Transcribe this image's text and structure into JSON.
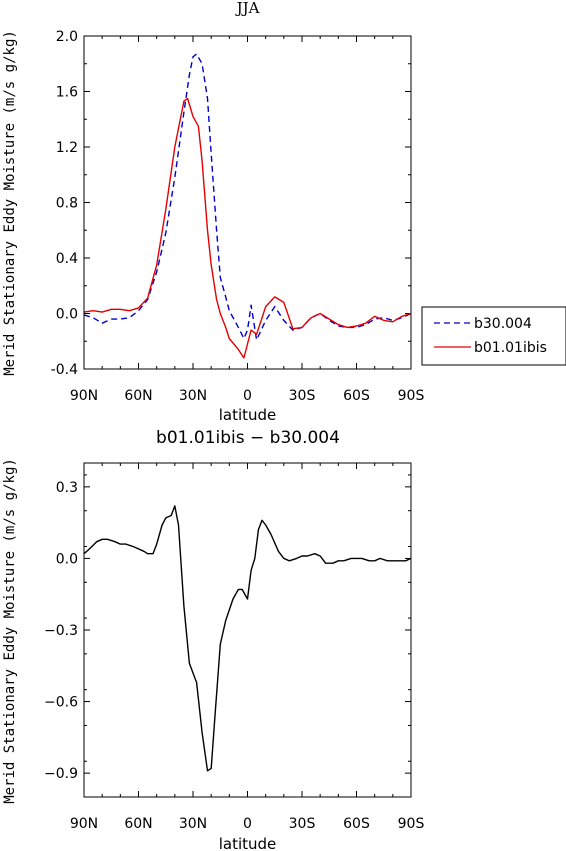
{
  "chart_data": [
    {
      "type": "line",
      "title": "JJA",
      "xlabel": "latitude",
      "ylabel": "Merid Stationary Eddy Moisture (m/s g/kg)",
      "xlim": [
        90,
        -90
      ],
      "ylim": [
        -0.4,
        2.0
      ],
      "x_ticks": [
        {
          "value": 90,
          "label": "90N"
        },
        {
          "value": 60,
          "label": "60N"
        },
        {
          "value": 30,
          "label": "30N"
        },
        {
          "value": 0,
          "label": "0"
        },
        {
          "value": -30,
          "label": "30S"
        },
        {
          "value": -60,
          "label": "60S"
        },
        {
          "value": -90,
          "label": "90S"
        }
      ],
      "y_ticks": [
        {
          "value": 2.0,
          "label": "2.0"
        },
        {
          "value": 1.6,
          "label": "1.6"
        },
        {
          "value": 1.2,
          "label": "1.2"
        },
        {
          "value": 0.8,
          "label": "0.8"
        },
        {
          "value": 0.4,
          "label": "0.4"
        },
        {
          "value": 0.0,
          "label": "0.0"
        },
        {
          "value": -0.4,
          "label": "-0.4"
        }
      ],
      "legend_position": "right",
      "series": [
        {
          "name": "b30.004",
          "color": "#0000cc",
          "dash": "dashed",
          "x": [
            90,
            85,
            80,
            75,
            70,
            65,
            60,
            55,
            50,
            45,
            40,
            35,
            32,
            30,
            28,
            25,
            22,
            20,
            17,
            15,
            12,
            10,
            5,
            2,
            0,
            -2,
            -5,
            -10,
            -15,
            -20,
            -25,
            -30,
            -35,
            -40,
            -45,
            -50,
            -55,
            -60,
            -65,
            -70,
            -75,
            -80,
            -85,
            -90
          ],
          "y": [
            -0.01,
            -0.03,
            -0.07,
            -0.04,
            -0.04,
            -0.03,
            0.02,
            0.1,
            0.3,
            0.58,
            0.98,
            1.45,
            1.72,
            1.85,
            1.87,
            1.8,
            1.55,
            1.15,
            0.6,
            0.26,
            0.12,
            0.02,
            -0.1,
            -0.18,
            -0.12,
            0.06,
            -0.19,
            -0.05,
            0.05,
            -0.05,
            -0.12,
            -0.1,
            -0.03,
            0.0,
            -0.05,
            -0.09,
            -0.1,
            -0.1,
            -0.08,
            -0.04,
            -0.03,
            -0.05,
            -0.03,
            0.0
          ]
        },
        {
          "name": "b01.01ibis",
          "color": "#e60000",
          "dash": "solid",
          "x": [
            90,
            85,
            80,
            75,
            70,
            65,
            60,
            55,
            50,
            45,
            40,
            35,
            33,
            30,
            27,
            25,
            22,
            20,
            17,
            15,
            12,
            10,
            5,
            2,
            0,
            -2,
            -5,
            -10,
            -15,
            -20,
            -25,
            -30,
            -35,
            -40,
            -45,
            -50,
            -55,
            -60,
            -65,
            -70,
            -75,
            -80,
            -85,
            -90
          ],
          "y": [
            0.01,
            0.02,
            0.01,
            0.03,
            0.03,
            0.02,
            0.04,
            0.11,
            0.35,
            0.75,
            1.2,
            1.53,
            1.55,
            1.42,
            1.35,
            1.1,
            0.6,
            0.35,
            0.1,
            0.0,
            -0.1,
            -0.18,
            -0.26,
            -0.32,
            -0.22,
            -0.12,
            -0.15,
            0.05,
            0.12,
            0.08,
            -0.11,
            -0.1,
            -0.03,
            0.0,
            -0.04,
            -0.08,
            -0.1,
            -0.09,
            -0.07,
            -0.02,
            -0.05,
            -0.06,
            -0.02,
            0.0
          ]
        }
      ]
    },
    {
      "type": "line",
      "title": "b01.01ibis − b30.004",
      "xlabel": "latitude",
      "ylabel": "Merid Stationary Eddy Moisture (m/s g/kg)",
      "xlim": [
        90,
        -90
      ],
      "ylim": [
        -1.0,
        0.4
      ],
      "x_ticks": [
        {
          "value": 90,
          "label": "90N"
        },
        {
          "value": 60,
          "label": "60N"
        },
        {
          "value": 30,
          "label": "30N"
        },
        {
          "value": 0,
          "label": "0"
        },
        {
          "value": -30,
          "label": "30S"
        },
        {
          "value": -60,
          "label": "60S"
        },
        {
          "value": -90,
          "label": "90S"
        }
      ],
      "y_ticks": [
        {
          "value": 0.3,
          "label": "0.3"
        },
        {
          "value": 0.0,
          "label": "0.0"
        },
        {
          "value": -0.3,
          "label": "−0.3"
        },
        {
          "value": -0.6,
          "label": "−0.6"
        },
        {
          "value": -0.9,
          "label": "−0.9"
        }
      ],
      "series": [
        {
          "color": "#000000",
          "dash": "solid",
          "x": [
            90,
            87,
            83,
            80,
            77,
            73,
            70,
            67,
            63,
            60,
            57,
            55,
            52,
            50,
            47,
            45,
            42,
            40,
            38,
            35,
            32,
            28,
            25,
            22,
            20,
            18,
            15,
            12,
            8,
            5,
            3,
            0,
            -2,
            -4,
            -6,
            -8,
            -10,
            -13,
            -17,
            -20,
            -23,
            -27,
            -30,
            -33,
            -37,
            -40,
            -43,
            -47,
            -50,
            -53,
            -57,
            -60,
            -63,
            -67,
            -70,
            -73,
            -77,
            -80,
            -83,
            -87,
            -90
          ],
          "y": [
            0.02,
            0.04,
            0.07,
            0.08,
            0.08,
            0.07,
            0.06,
            0.06,
            0.05,
            0.04,
            0.03,
            0.02,
            0.02,
            0.06,
            0.14,
            0.17,
            0.18,
            0.22,
            0.14,
            -0.2,
            -0.44,
            -0.52,
            -0.73,
            -0.89,
            -0.88,
            -0.67,
            -0.36,
            -0.26,
            -0.17,
            -0.13,
            -0.13,
            -0.17,
            -0.05,
            0.0,
            0.12,
            0.16,
            0.14,
            0.1,
            0.03,
            0.0,
            -0.01,
            0.0,
            0.01,
            0.01,
            0.02,
            0.01,
            -0.02,
            -0.02,
            -0.01,
            -0.01,
            0.0,
            0.0,
            0.0,
            -0.01,
            -0.01,
            0.0,
            -0.01,
            -0.01,
            -0.01,
            -0.01,
            0.0
          ]
        }
      ]
    }
  ]
}
